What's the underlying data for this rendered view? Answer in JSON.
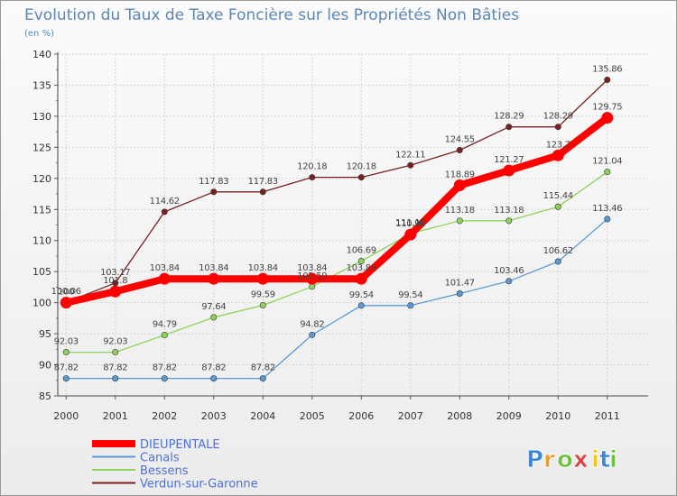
{
  "chart_data": {
    "type": "line",
    "title": "Evolution du Taux de Taxe Foncière sur les Propriétés Non Bâties",
    "subtitle": "(en %)",
    "x": [
      "2000",
      "2001",
      "2002",
      "2003",
      "2004",
      "2005",
      "2006",
      "2007",
      "2008",
      "2009",
      "2010",
      "2011"
    ],
    "ylim": [
      85,
      140
    ],
    "yticks": [
      85,
      90,
      95,
      100,
      105,
      110,
      115,
      120,
      125,
      130,
      135,
      140
    ],
    "grid": true,
    "legend_position": "bottom-left",
    "series": [
      {
        "name": "DIEUPENTALE",
        "color": "#ff0000",
        "values": [
          100.0,
          101.8,
          103.84,
          103.84,
          103.84,
          103.84,
          103.84,
          110.96,
          118.89,
          121.27,
          123.7,
          129.75
        ],
        "labels": [
          "100",
          "101.8",
          "103.84",
          "103.84",
          "103.84",
          "103.84",
          "103.84",
          "110.96",
          "118.89",
          "121.27",
          "123.7",
          "129.75"
        ]
      },
      {
        "name": "Canals",
        "color": "#5b9bd5",
        "values": [
          87.82,
          87.82,
          87.82,
          87.82,
          87.82,
          94.82,
          99.54,
          99.54,
          101.47,
          103.46,
          106.62,
          113.46
        ],
        "labels": [
          "87.82",
          "87.82",
          "87.82",
          "87.82",
          "87.82",
          "94.82",
          "99.54",
          "99.54",
          "101.47",
          "103.46",
          "106.62",
          "113.46"
        ]
      },
      {
        "name": "Bessens",
        "color": "#8ed35a",
        "values": [
          92.03,
          92.03,
          94.79,
          97.64,
          99.59,
          102.59,
          106.69,
          111.12,
          113.18,
          113.18,
          115.44,
          121.04
        ],
        "labels": [
          "92.03",
          "92.03",
          "94.79",
          "97.64",
          "99.59",
          "102.59",
          "106.69",
          "111.12",
          "113.18",
          "113.18",
          "115.44",
          "121.04"
        ]
      },
      {
        "name": "Verdun-sur-Garonne",
        "color": "#7a2020",
        "values": [
          100.06,
          103.17,
          114.62,
          117.83,
          117.83,
          120.18,
          120.18,
          122.11,
          124.55,
          128.29,
          128.29,
          135.86
        ],
        "labels": [
          "100.06",
          "103.17",
          "114.62",
          "117.83",
          "117.83",
          "120.18",
          "120.18",
          "122.11",
          "124.55",
          "128.29",
          "128.29",
          "135.86"
        ]
      }
    ]
  },
  "brand": {
    "logo_text": "Proxiti"
  }
}
